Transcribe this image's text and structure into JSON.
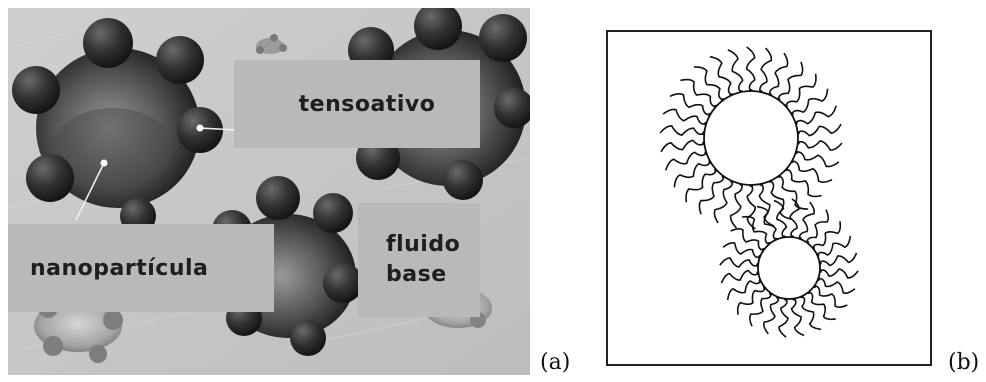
{
  "panel_a": {
    "labels": {
      "tensoativo": "tensoativo",
      "nanoparticula": "nanopartícula",
      "fluido_line1": "fluido",
      "fluido_line2": "base"
    },
    "caption": "(a)"
  },
  "panel_b": {
    "caption": "(b)"
  },
  "colors": {
    "background_gray": "#c4c4c4",
    "label_box": "#b9b9b9",
    "particle_dark": "#2e2e2e",
    "line": "#111111"
  }
}
